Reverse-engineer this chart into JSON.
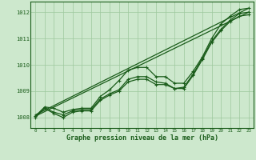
{
  "title": "Graphe pression niveau de la mer (hPa)",
  "xlabel_hours": [
    0,
    1,
    2,
    3,
    4,
    5,
    6,
    7,
    8,
    9,
    10,
    11,
    12,
    13,
    14,
    15,
    16,
    17,
    18,
    19,
    20,
    21,
    22,
    23
  ],
  "ylim": [
    1007.6,
    1012.4
  ],
  "yticks": [
    1008,
    1009,
    1010,
    1011,
    1012
  ],
  "background_color": "#cde8cd",
  "grid_color": "#9dc89d",
  "line_color": "#1a5c1a",
  "straight_lo": [
    1008.05,
    1012.0
  ],
  "straight_hi": [
    1008.1,
    1012.15
  ],
  "line1": [
    1008.05,
    1008.4,
    1008.35,
    1008.2,
    1008.3,
    1008.35,
    1008.35,
    1008.8,
    1009.05,
    1009.4,
    1009.8,
    1009.9,
    1009.9,
    1009.55,
    1009.55,
    1009.3,
    1009.3,
    1009.75,
    1010.3,
    1011.0,
    1011.55,
    1011.85,
    1012.1,
    1012.15
  ],
  "line2": [
    1008.05,
    1008.35,
    1008.2,
    1008.1,
    1008.25,
    1008.3,
    1008.3,
    1008.7,
    1008.9,
    1009.05,
    1009.45,
    1009.55,
    1009.55,
    1009.35,
    1009.3,
    1009.1,
    1009.15,
    1009.65,
    1010.25,
    1010.9,
    1011.35,
    1011.7,
    1011.95,
    1012.0
  ],
  "line3": [
    1008.0,
    1008.35,
    1008.15,
    1008.0,
    1008.2,
    1008.25,
    1008.25,
    1008.65,
    1008.85,
    1009.0,
    1009.35,
    1009.45,
    1009.45,
    1009.25,
    1009.25,
    1009.1,
    1009.1,
    1009.6,
    1010.2,
    1010.85,
    1011.3,
    1011.65,
    1011.85,
    1011.9
  ]
}
